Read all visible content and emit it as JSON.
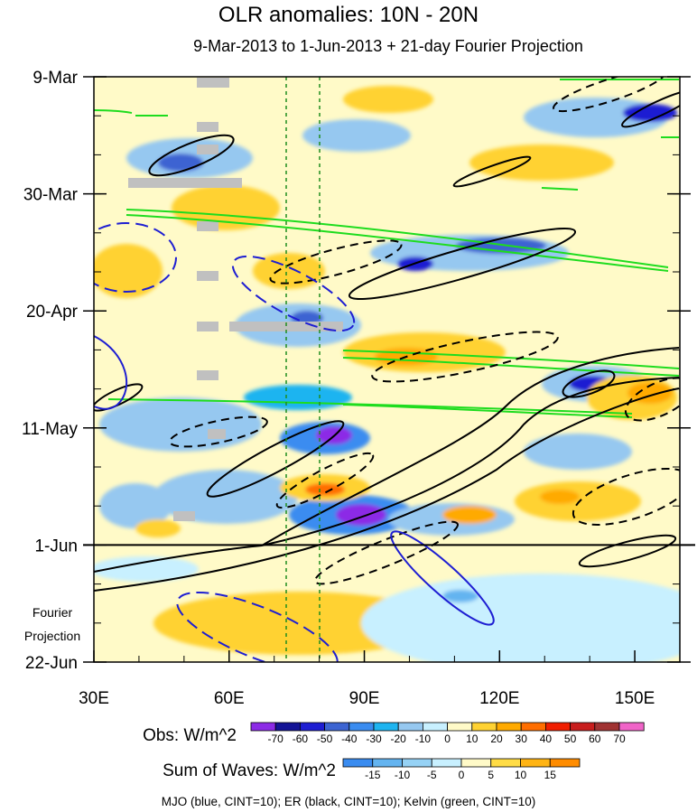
{
  "chart_data": {
    "type": "heatmap",
    "title": "OLR anomalies: 10N - 20N",
    "subtitle": "9-Mar-2013 to 1-Jun-2013 + 21-day Fourier Projection",
    "x_axis": {
      "range": [
        30,
        160
      ],
      "ticks": [
        30,
        60,
        90,
        120,
        150
      ],
      "tick_labels": [
        "30E",
        "60E",
        "90E",
        "120E",
        "150E"
      ],
      "minor_step": 10
    },
    "y_axis": {
      "range_days": [
        0,
        105
      ],
      "ticks_days": [
        0,
        21,
        42,
        63,
        84,
        105
      ],
      "tick_labels": [
        "9-Mar",
        "30-Mar",
        "20-Apr",
        "11-May",
        "1-Jun",
        "22-Jun"
      ],
      "minor_step_days": 7,
      "inverted": true
    },
    "fourier_projection_label": [
      "Fourier",
      "Projection"
    ],
    "observation_end_day": 84,
    "reference_longitudes": [
      72.5,
      80
    ],
    "obs_legend": {
      "title": "Obs: W/m^2",
      "levels": [
        -70,
        -60,
        -50,
        -40,
        -30,
        -20,
        -10,
        0,
        10,
        20,
        30,
        40,
        50,
        60,
        70
      ],
      "labels": [
        "-70",
        "-60",
        "-50",
        "-40",
        "-30",
        "-20",
        "-10",
        "0",
        "10",
        "20",
        "30",
        "40",
        "50",
        "60",
        "70"
      ],
      "colors": [
        "#8c2be6",
        "#141496",
        "#1e1ed2",
        "#3c64d2",
        "#3a8cf0",
        "#1eb4f0",
        "#96c8f0",
        "#c8f0ff",
        "#fffac8",
        "#ffd232",
        "#ffaa00",
        "#ff6e00",
        "#f01e00",
        "#c81e1e",
        "#a03232",
        "#f064c8"
      ]
    },
    "wave_legend": {
      "title": "Sum of Waves: W/m^2",
      "levels": [
        -15,
        -10,
        -5,
        0,
        5,
        10,
        15
      ],
      "labels": [
        "-15",
        "-10",
        "-5",
        "0",
        "5",
        "10",
        "15"
      ],
      "colors": [
        "#3a8cf0",
        "#64b4f0",
        "#96d2f5",
        "#c8f0ff",
        "#fffac8",
        "#ffdc46",
        "#ffb414",
        "#ff8c00"
      ]
    },
    "footnote": "MJO (blue, CINT=10); ER (black, CINT=10); Kelvin (green, CINT=10)",
    "series": [
      {
        "name": "MJO",
        "color": "#1e1ed2"
      },
      {
        "name": "ER",
        "color": "#000000"
      },
      {
        "name": "Kelvin",
        "color": "#1edc1e"
      }
    ]
  }
}
